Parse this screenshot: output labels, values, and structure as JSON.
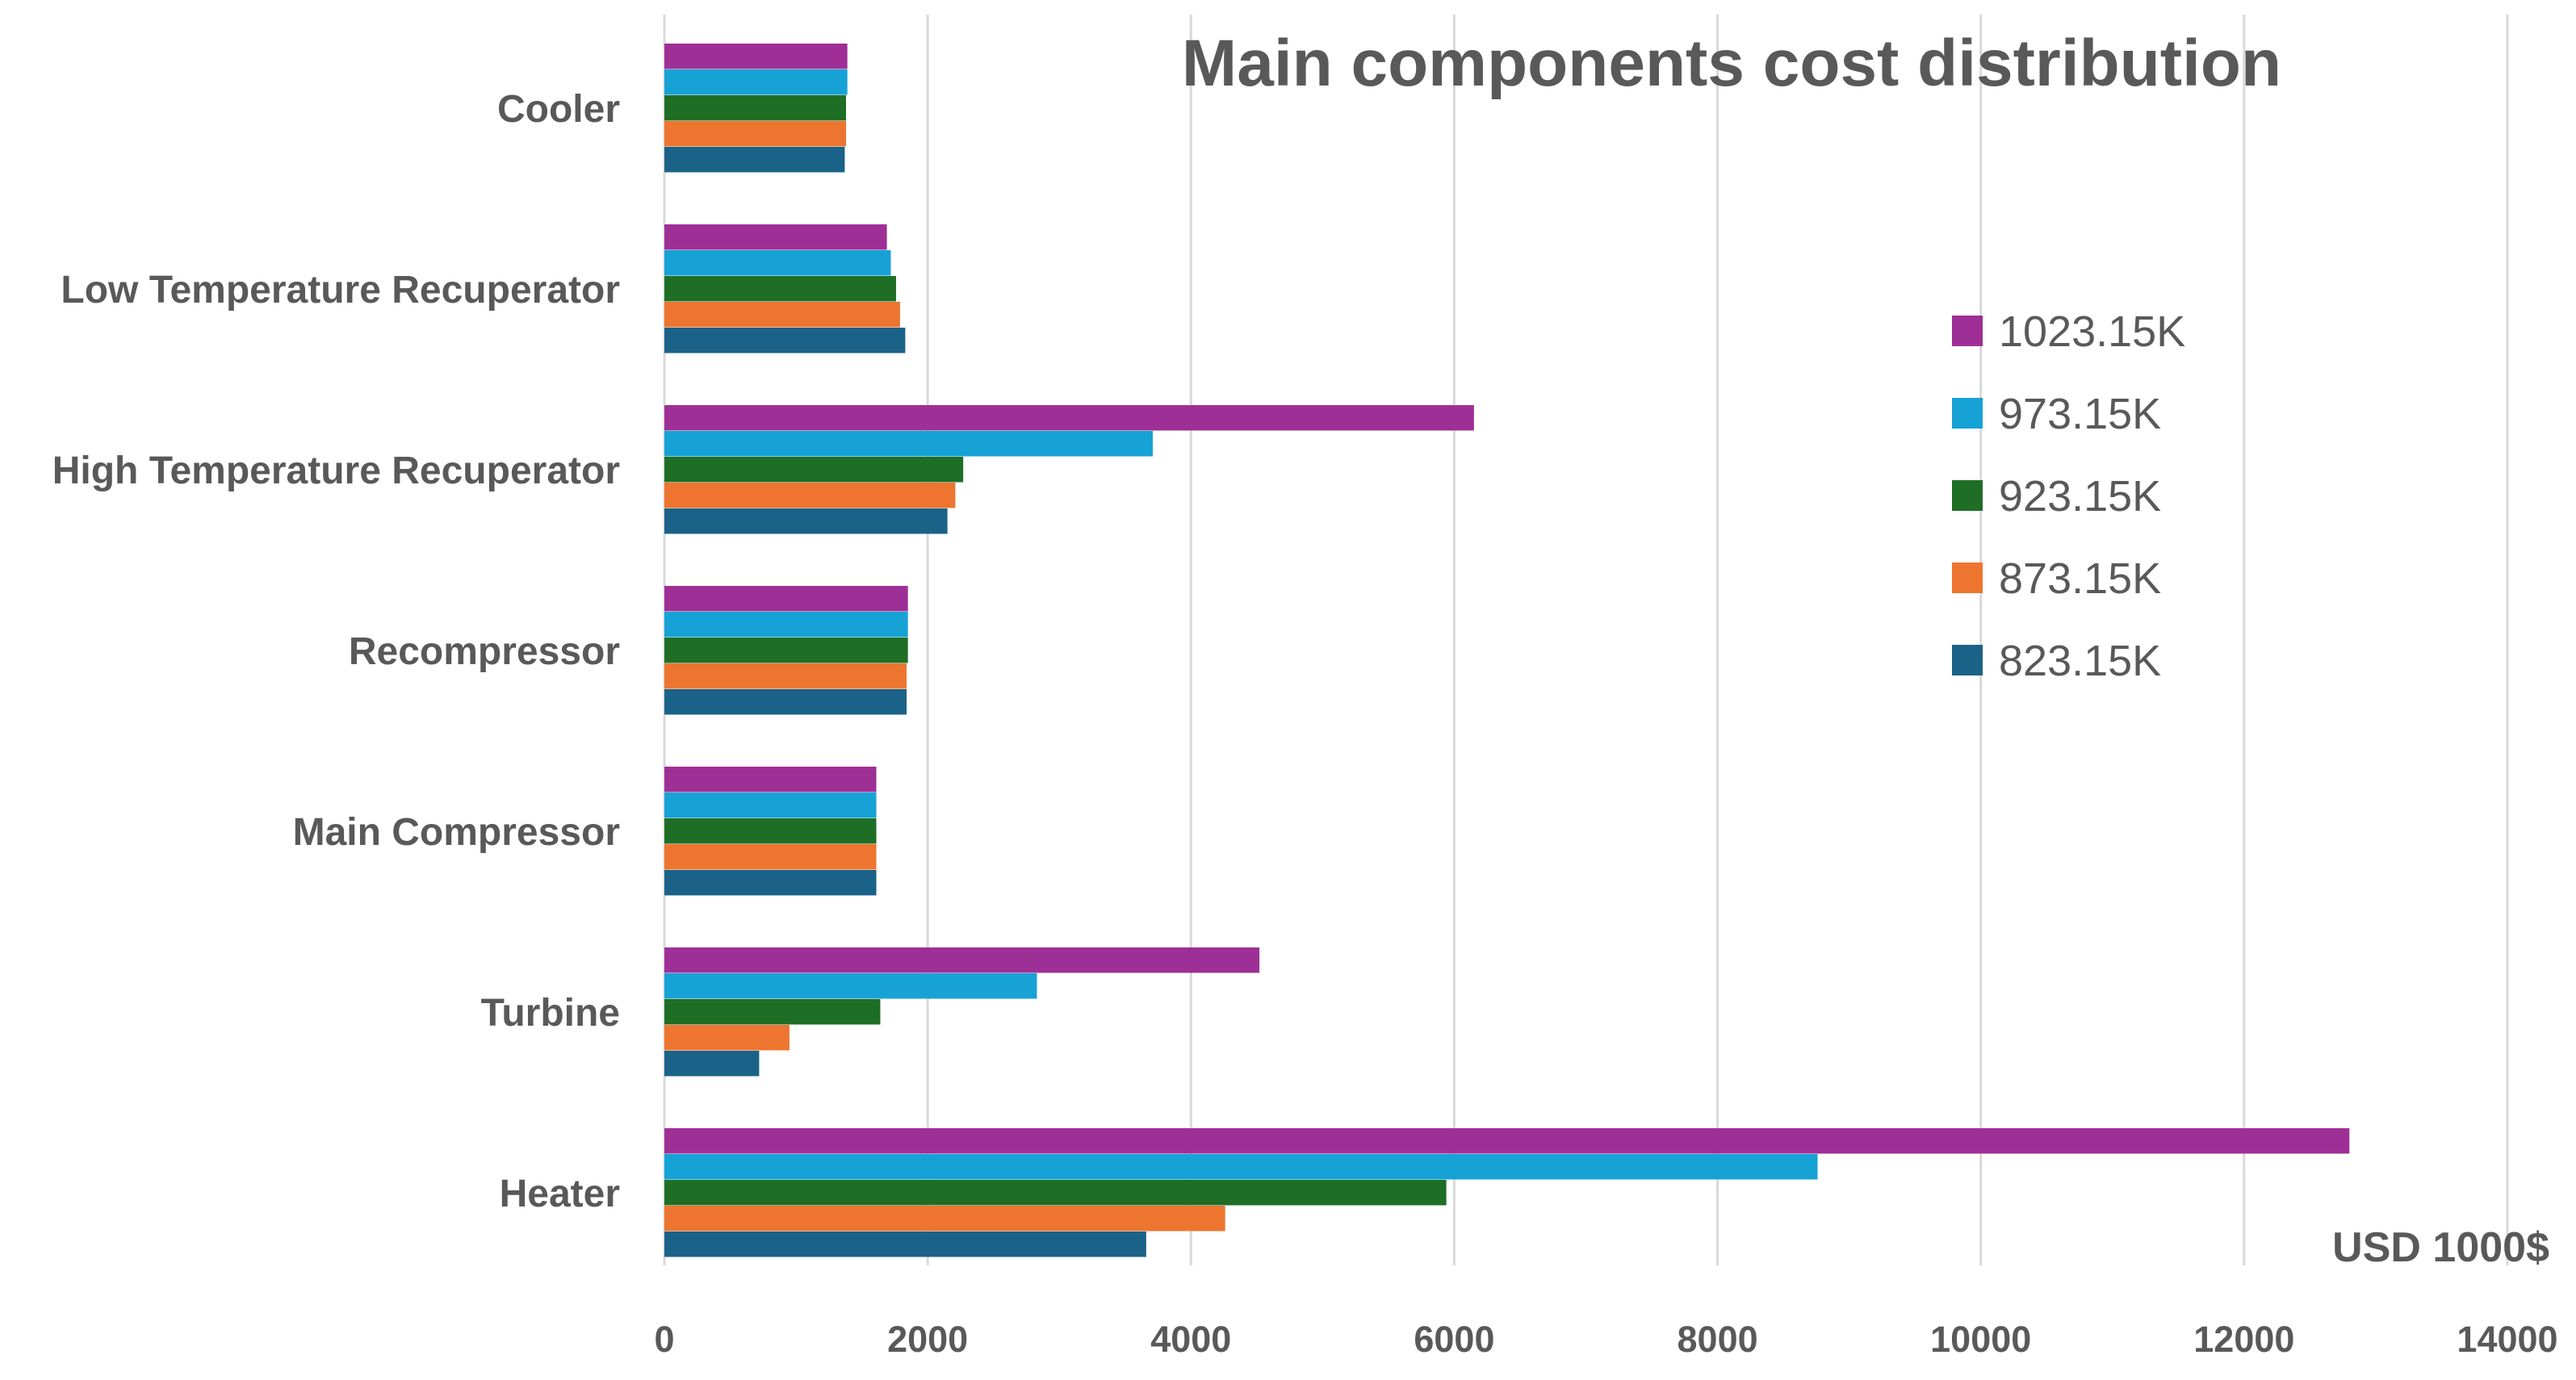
{
  "chart_data": {
    "type": "bar",
    "orientation": "horizontal",
    "title": "Main components cost distribution",
    "xlabel": "USD 1000$",
    "ylabel": "",
    "xlim": [
      0,
      14000
    ],
    "xticks": [
      0,
      2000,
      4000,
      6000,
      8000,
      10000,
      12000,
      14000
    ],
    "grid": true,
    "legend_position": "right",
    "categories": [
      "Cooler",
      "Low Temperature Recuperator",
      "High Temperature Recuperator",
      "Recompressor",
      "Main Compressor",
      "Turbine",
      "Heater"
    ],
    "series": [
      {
        "name": "1023.15K",
        "color": "#9E2F96",
        "values": [
          1390,
          1690,
          6150,
          1850,
          1610,
          4520,
          12800
        ]
      },
      {
        "name": "973.15K",
        "color": "#17A2D6",
        "values": [
          1390,
          1720,
          3710,
          1850,
          1610,
          2830,
          8760
        ]
      },
      {
        "name": "923.15K",
        "color": "#1E6E25",
        "values": [
          1380,
          1760,
          2270,
          1850,
          1610,
          1640,
          5940
        ]
      },
      {
        "name": "873.15K",
        "color": "#ED7530",
        "values": [
          1380,
          1790,
          2210,
          1840,
          1610,
          950,
          4260
        ]
      },
      {
        "name": "823.15K",
        "color": "#1A6287",
        "values": [
          1370,
          1830,
          2150,
          1840,
          1610,
          720,
          3660
        ]
      }
    ]
  }
}
